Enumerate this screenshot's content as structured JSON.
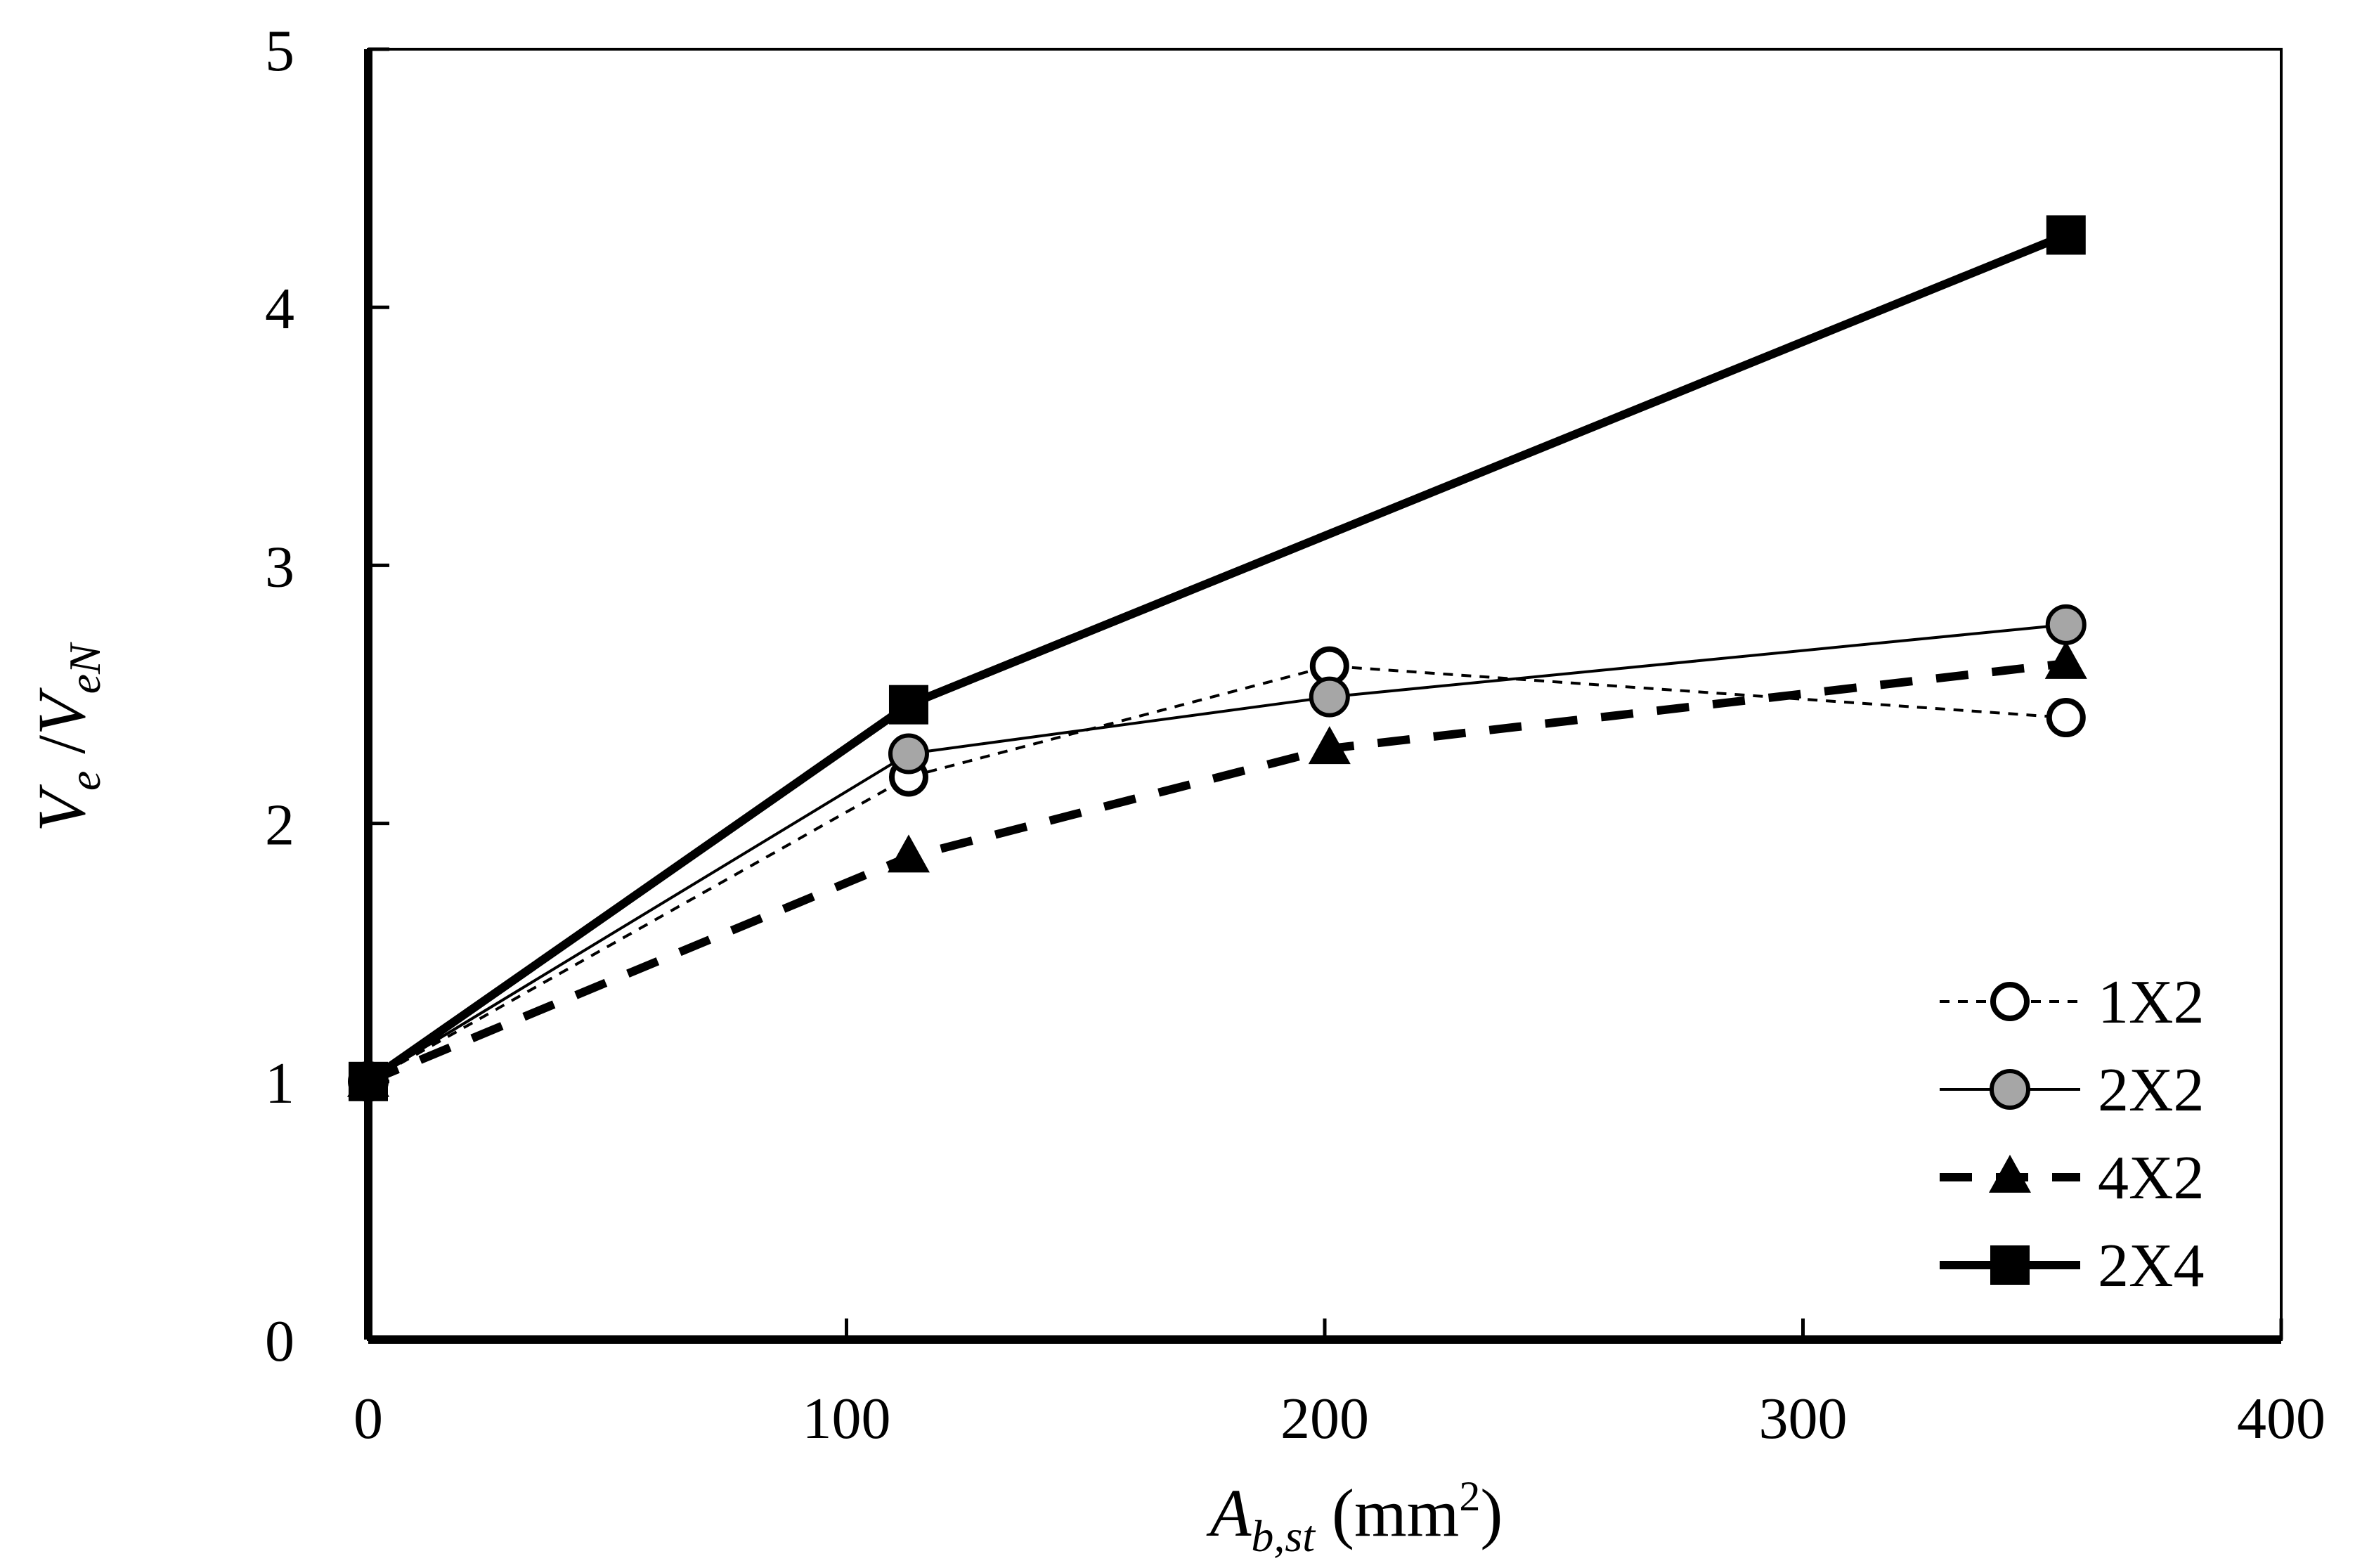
{
  "chart_data": {
    "type": "line",
    "xlabel": {
      "main": "A",
      "sub": "b,st",
      "unit_open": " (mm",
      "unit_sup": "2",
      "unit_close": ")"
    },
    "ylabel": {
      "v1": "V",
      "s1": "e",
      "sep": " /",
      "v2": "V",
      "s2": "eN"
    },
    "xlim": [
      0,
      400
    ],
    "ylim": [
      0,
      5
    ],
    "xticks": [
      "0",
      "100",
      "200",
      "300",
      "400"
    ],
    "yticks": [
      "0",
      "1",
      "2",
      "3",
      "4",
      "5"
    ],
    "x": [
      0,
      113,
      201,
      355
    ],
    "grid": false,
    "legend_position": "bottom-right",
    "series": [
      {
        "name": "1X2",
        "values": [
          1.0,
          2.18,
          2.61,
          2.41
        ],
        "marker": "circle-open",
        "line": "dotted-thin",
        "color": "#000000"
      },
      {
        "name": "2X2",
        "values": [
          1.0,
          2.27,
          2.49,
          2.77
        ],
        "marker": "circle-gray",
        "line": "solid-thin",
        "color": "#000000",
        "fill": "#a6a6a6"
      },
      {
        "name": "4X2",
        "values": [
          1.0,
          1.87,
          2.29,
          2.62
        ],
        "marker": "triangle",
        "line": "dashed-thick",
        "color": "#000000"
      },
      {
        "name": "2X4",
        "values": [
          1.0,
          2.46,
          null,
          4.28
        ],
        "marker": "square",
        "line": "solid-thick",
        "color": "#000000"
      }
    ]
  }
}
